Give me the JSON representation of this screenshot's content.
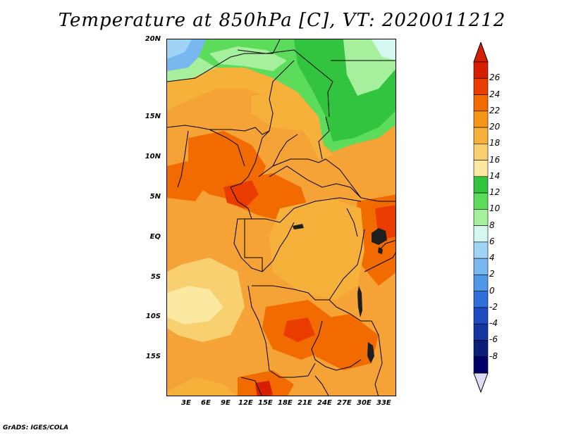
{
  "title": "Temperature at 850hPa [C], VT: 2020011212",
  "credit": "GrADS: IGES/COLA",
  "map": {
    "lat_labels": [
      "20N",
      "15N",
      "10N",
      "5N",
      "EQ",
      "5S",
      "10S",
      "15S"
    ],
    "lon_labels": [
      "3E",
      "6E",
      "9E",
      "12E",
      "15E",
      "18E",
      "21E",
      "24E",
      "27E",
      "30E",
      "33E"
    ]
  },
  "colorbar": {
    "labels": [
      "26",
      "24",
      "22",
      "20",
      "18",
      "16",
      "14",
      "12",
      "10",
      "8",
      "6",
      "4",
      "2",
      "0",
      "-2",
      "-4",
      "-6",
      "-8"
    ],
    "colors": [
      "#d71e00",
      "#eb3c00",
      "#f16b00",
      "#f5961a",
      "#f6b13a",
      "#f9d070",
      "#fbe9a1",
      "#33c43f",
      "#5cdc5a",
      "#a6f09d",
      "#d4f7ef",
      "#a0d4f6",
      "#78b8ef",
      "#4f97e8",
      "#2f6fd8",
      "#1e4bc2",
      "#1536a2",
      "#0b1f7a",
      "#00006a"
    ],
    "top_arrow_color": "#d71e00",
    "bottom_arrow_color": "#dcdcf8"
  }
}
